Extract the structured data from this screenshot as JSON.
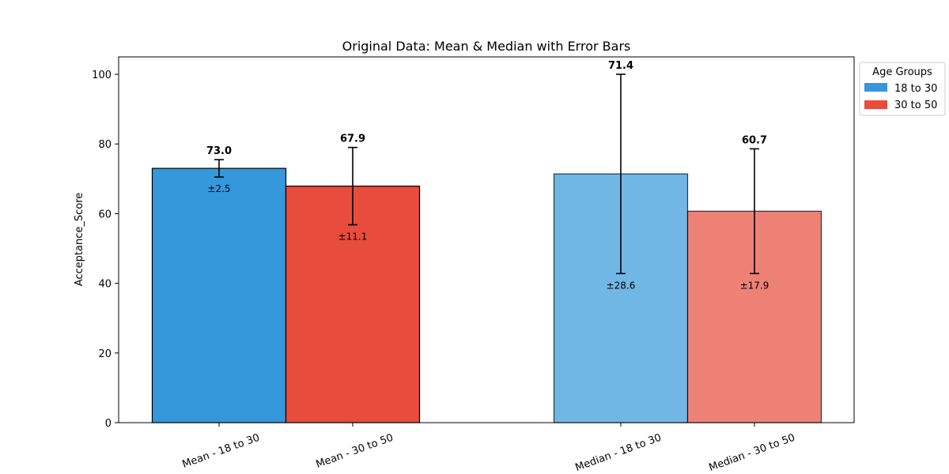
{
  "chart_data": {
    "type": "bar",
    "title": "Original Data: Mean & Median with Error Bars",
    "xlabel": "",
    "ylabel": "Acceptance_Score",
    "ylim": [
      0,
      105
    ],
    "yticks": [
      0,
      20,
      40,
      60,
      80,
      100
    ],
    "grid": false,
    "legend": {
      "title": "Age Groups",
      "placement": "outside-top-right",
      "entries": [
        {
          "label": "18 to 30",
          "color": "#3498db"
        },
        {
          "label": "30 to 50",
          "color": "#e74c3c"
        }
      ]
    },
    "bars": [
      {
        "category": "Mean - 18 to 30",
        "value": 73.0,
        "value_label": "73.0",
        "error": 2.5,
        "error_label": "±2.5",
        "color": "#3498db",
        "opacity": 1.0
      },
      {
        "category": "Mean - 30 to 50",
        "value": 67.9,
        "value_label": "67.9",
        "error": 11.1,
        "error_label": "±11.1",
        "color": "#e74c3c",
        "opacity": 1.0
      },
      {
        "category": "Median - 18 to 30",
        "value": 71.4,
        "value_label": "71.4",
        "error_low": 28.6,
        "error_high": 28.6,
        "error_label": "±28.6",
        "color": "#3498db",
        "opacity": 0.7
      },
      {
        "category": "Median - 30 to 50",
        "value": 60.7,
        "value_label": "60.7",
        "error_low": 17.9,
        "error_high": 17.9,
        "error_label": "±17.9",
        "color": "#e74c3c",
        "opacity": 0.7
      }
    ]
  }
}
